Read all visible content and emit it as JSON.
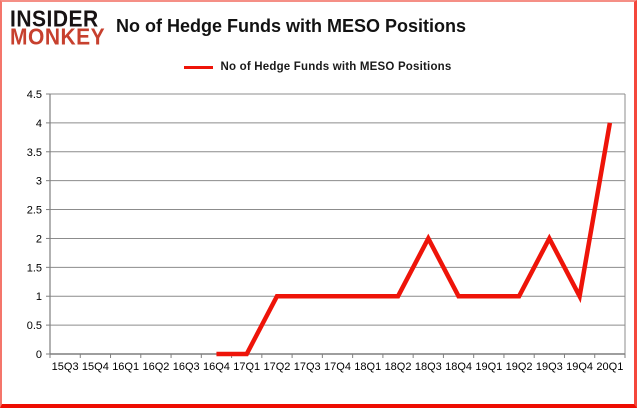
{
  "logo": {
    "line1": "INSIDER",
    "line2": "MONKEY"
  },
  "colors": {
    "line": "#ee1409",
    "grid": "#8c8c8c",
    "axis": "#7f7f7f",
    "tick_label": "#000000",
    "logo_black": "#171213",
    "logo_red": "#c7402e",
    "frame_border": "#ee0d02"
  },
  "chart_data": {
    "type": "line",
    "title": "No of Hedge Funds with MESO Positions",
    "categories": [
      "15Q3",
      "15Q4",
      "16Q1",
      "16Q2",
      "16Q3",
      "16Q4",
      "17Q1",
      "17Q2",
      "17Q3",
      "17Q4",
      "18Q1",
      "18Q2",
      "18Q3",
      "18Q4",
      "19Q1",
      "19Q2",
      "19Q3",
      "19Q4",
      "20Q1"
    ],
    "series": [
      {
        "name": "No of Hedge Funds with MESO Positions",
        "values": [
          null,
          null,
          null,
          null,
          null,
          0,
          0,
          1,
          1,
          1,
          1,
          1,
          2,
          1,
          1,
          1,
          2,
          1,
          4
        ]
      }
    ],
    "xlabel": "",
    "ylabel": "",
    "ylim": [
      0,
      4.5
    ],
    "ytick_step": 0.5,
    "grid": true,
    "legend_position": "top-center"
  }
}
